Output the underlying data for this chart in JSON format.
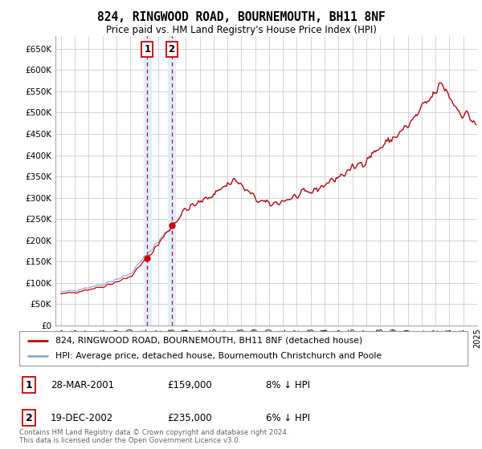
{
  "title": "824, RINGWOOD ROAD, BOURNEMOUTH, BH11 8NF",
  "subtitle": "Price paid vs. HM Land Registry's House Price Index (HPI)",
  "ylim": [
    0,
    680000
  ],
  "ytick_values": [
    0,
    50000,
    100000,
    150000,
    200000,
    250000,
    300000,
    350000,
    400000,
    450000,
    500000,
    550000,
    600000,
    650000
  ],
  "sale1": {
    "date_num": 2001.22,
    "price": 159000,
    "label": "1",
    "date_str": "28-MAR-2001",
    "pct": "8% ↓ HPI"
  },
  "sale2": {
    "date_num": 2002.97,
    "price": 235000,
    "label": "2",
    "date_str": "19-DEC-2002",
    "pct": "6% ↓ HPI"
  },
  "legend_line1": "824, RINGWOOD ROAD, BOURNEMOUTH, BH11 8NF (detached house)",
  "legend_line2": "HPI: Average price, detached house, Bournemouth Christchurch and Poole",
  "footer1": "Contains HM Land Registry data © Crown copyright and database right 2024.",
  "footer2": "This data is licensed under the Open Government Licence v3.0.",
  "sale_line_color": "#cc0000",
  "hpi_line_color": "#88aadd",
  "background_color": "#ffffff",
  "grid_color": "#cccccc",
  "highlight_fill": "#ddeeff",
  "xlim_start": 1995,
  "xlim_end": 2025
}
